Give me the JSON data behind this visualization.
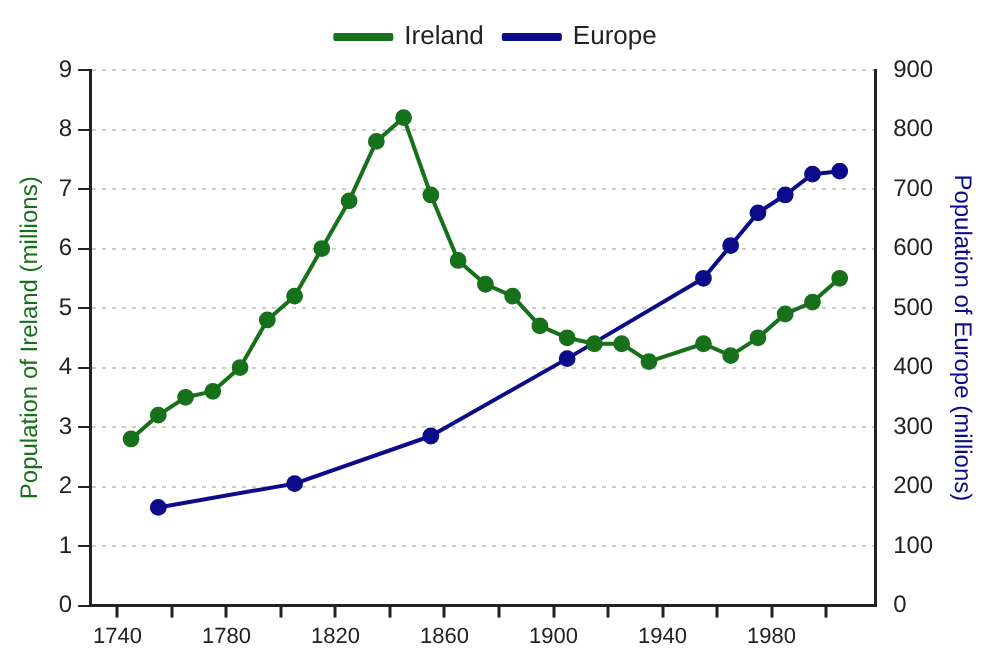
{
  "chart_data": {
    "type": "line",
    "ylabel": "Population of Ireland (millions)",
    "y2label": "Population of Europe (millions)",
    "series": [
      {
        "name": "Ireland",
        "color": "#17701a",
        "x": [
          1745,
          1755,
          1765,
          1775,
          1785,
          1795,
          1805,
          1815,
          1825,
          1835,
          1845,
          1855,
          1865,
          1875,
          1885,
          1895,
          1905,
          1915,
          1925,
          1935,
          1955,
          1965,
          1975,
          1985,
          1995,
          2005
        ],
        "values": [
          2.8,
          3.2,
          3.5,
          3.6,
          4.0,
          4.8,
          5.2,
          6.0,
          6.8,
          7.8,
          8.2,
          6.9,
          5.8,
          5.4,
          5.2,
          4.7,
          4.5,
          4.4,
          4.4,
          4.1,
          4.4,
          4.2,
          4.5,
          4.9,
          5.1,
          5.5
        ]
      },
      {
        "name": "Europe",
        "color": "#0c0c8a",
        "axis": "y2",
        "x": [
          1755,
          1805,
          1855,
          1905,
          1955,
          1965,
          1975,
          1985,
          1995,
          2005
        ],
        "values": [
          165,
          205,
          285,
          415,
          550,
          605,
          660,
          690,
          725,
          730
        ]
      }
    ],
    "xlim": [
      1730,
      2018
    ],
    "xticks": [
      1740,
      {
        "value": 1760,
        "label": null
      },
      1780,
      {
        "value": 1800,
        "label": null
      },
      1820,
      {
        "value": 1840,
        "label": null
      },
      1860,
      {
        "value": 1880,
        "label": null
      },
      1900,
      {
        "value": 1920,
        "label": null
      },
      1940,
      {
        "value": 1960,
        "label": null
      },
      1980,
      {
        "value": 2000,
        "label": null
      }
    ],
    "ylim": [
      0,
      9
    ],
    "yticks": [
      0,
      1,
      2,
      3,
      4,
      5,
      6,
      7,
      8,
      9
    ],
    "y2lim": [
      0,
      900
    ],
    "y2ticks": [
      0,
      100,
      200,
      300,
      400,
      500,
      600,
      700,
      800,
      900
    ],
    "grid": "y",
    "legend": "top",
    "marker": "circle",
    "line_style": "solid"
  }
}
